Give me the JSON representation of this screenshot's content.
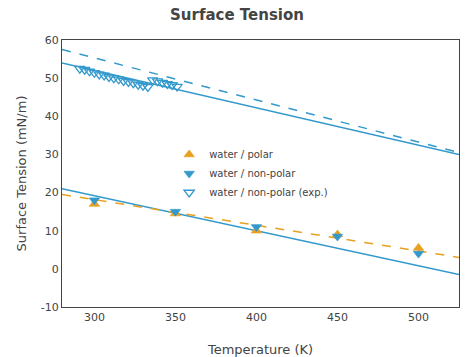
{
  "chart_data": {
    "type": "scatter",
    "title": "Surface Tension",
    "xlabel": "Temperature (K)",
    "ylabel": "Surface Tension (mN/m)",
    "xlim": [
      280,
      525
    ],
    "ylim": [
      -10,
      60
    ],
    "xticks": [
      300,
      350,
      400,
      450,
      500
    ],
    "yticks": [
      -10,
      0,
      10,
      20,
      30,
      40,
      50,
      60
    ],
    "grid": false,
    "legend": "center",
    "series": [
      {
        "type": "line",
        "color": "#3399cc",
        "line_style": "solid",
        "x": [
          280,
          525
        ],
        "values": [
          21.0,
          -1.5
        ]
      },
      {
        "type": "line",
        "color": "#E8A020",
        "line_style": "dashed",
        "x": [
          280,
          525
        ],
        "values": [
          19.5,
          3.0
        ]
      },
      {
        "type": "line",
        "color": "#3399cc",
        "line_style": "solid",
        "x": [
          280,
          525
        ],
        "values": [
          54.0,
          30.0
        ]
      },
      {
        "type": "line",
        "color": "#3399cc",
        "line_style": "dashed",
        "x": [
          280,
          525
        ],
        "values": [
          57.5,
          30.5
        ]
      },
      {
        "type": "scatter",
        "name": "water / polar",
        "color": "#E8A020",
        "marker": "triangle-up",
        "x": [
          300,
          350,
          400,
          450,
          500
        ],
        "values": [
          17.0,
          14.5,
          10.0,
          9.0,
          5.5
        ]
      },
      {
        "type": "scatter",
        "name": "water / non-polar",
        "color": "#3399cc",
        "marker": "triangle-down",
        "x": [
          300,
          350,
          400,
          450,
          500
        ],
        "values": [
          18.0,
          15.0,
          11.0,
          8.5,
          4.0
        ]
      },
      {
        "type": "scatter",
        "name": "water / non-polar (exp.)",
        "color": "#3399cc",
        "marker": "triangle-down-open",
        "x": [
          291,
          294,
          297,
          300,
          303,
          306,
          309,
          312,
          315,
          318,
          321,
          324,
          327,
          330,
          333,
          336,
          339,
          342,
          345,
          348,
          351
        ],
        "values": [
          52.5,
          52.2,
          51.8,
          51.4,
          51.0,
          50.7,
          50.3,
          50.0,
          49.7,
          49.3,
          49.0,
          48.7,
          48.3,
          48.0,
          47.7,
          49.5,
          49.2,
          48.8,
          48.5,
          48.2,
          47.8
        ]
      }
    ]
  }
}
